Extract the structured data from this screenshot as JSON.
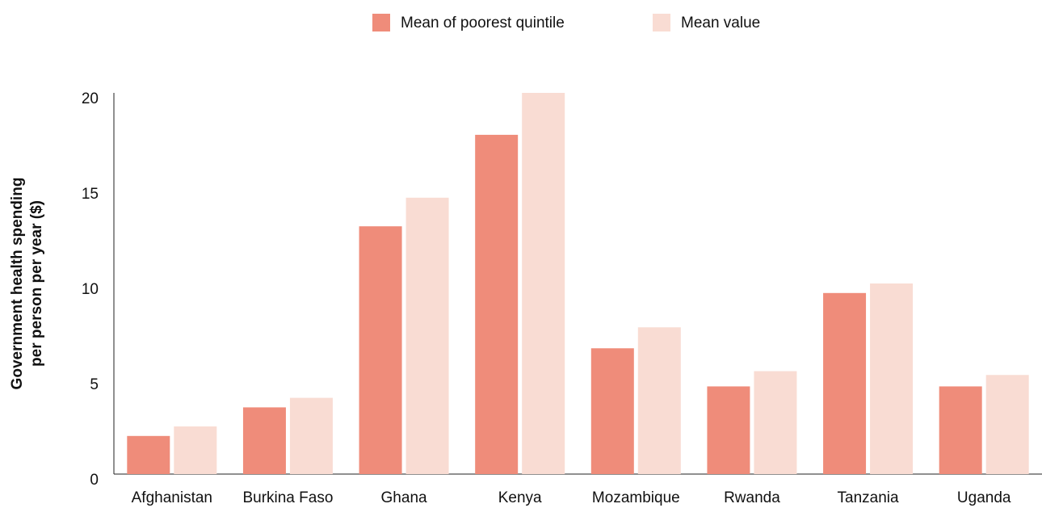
{
  "chart_data": {
    "type": "bar",
    "y_label": [
      "Government health spending",
      "per person per year ($)"
    ],
    "categories": [
      "Afghanistan",
      "Burkina Faso",
      "Ghana",
      "Kenya",
      "Mozambique",
      "Rwanda",
      "Tanzania",
      "Uganda"
    ],
    "series": [
      {
        "name": "Mean of poorest quintile",
        "color": "#ef8c7a",
        "values": [
          2.0,
          3.5,
          13.0,
          17.8,
          6.6,
          4.6,
          9.5,
          4.6
        ]
      },
      {
        "name": "Mean value",
        "color": "#f9dcd3",
        "values": [
          2.5,
          4.0,
          14.5,
          20.0,
          7.7,
          5.4,
          10.0,
          5.2
        ]
      }
    ],
    "ylim": [
      0,
      20
    ],
    "yticks": [
      0,
      5,
      10,
      15,
      20
    ],
    "grid": false
  }
}
